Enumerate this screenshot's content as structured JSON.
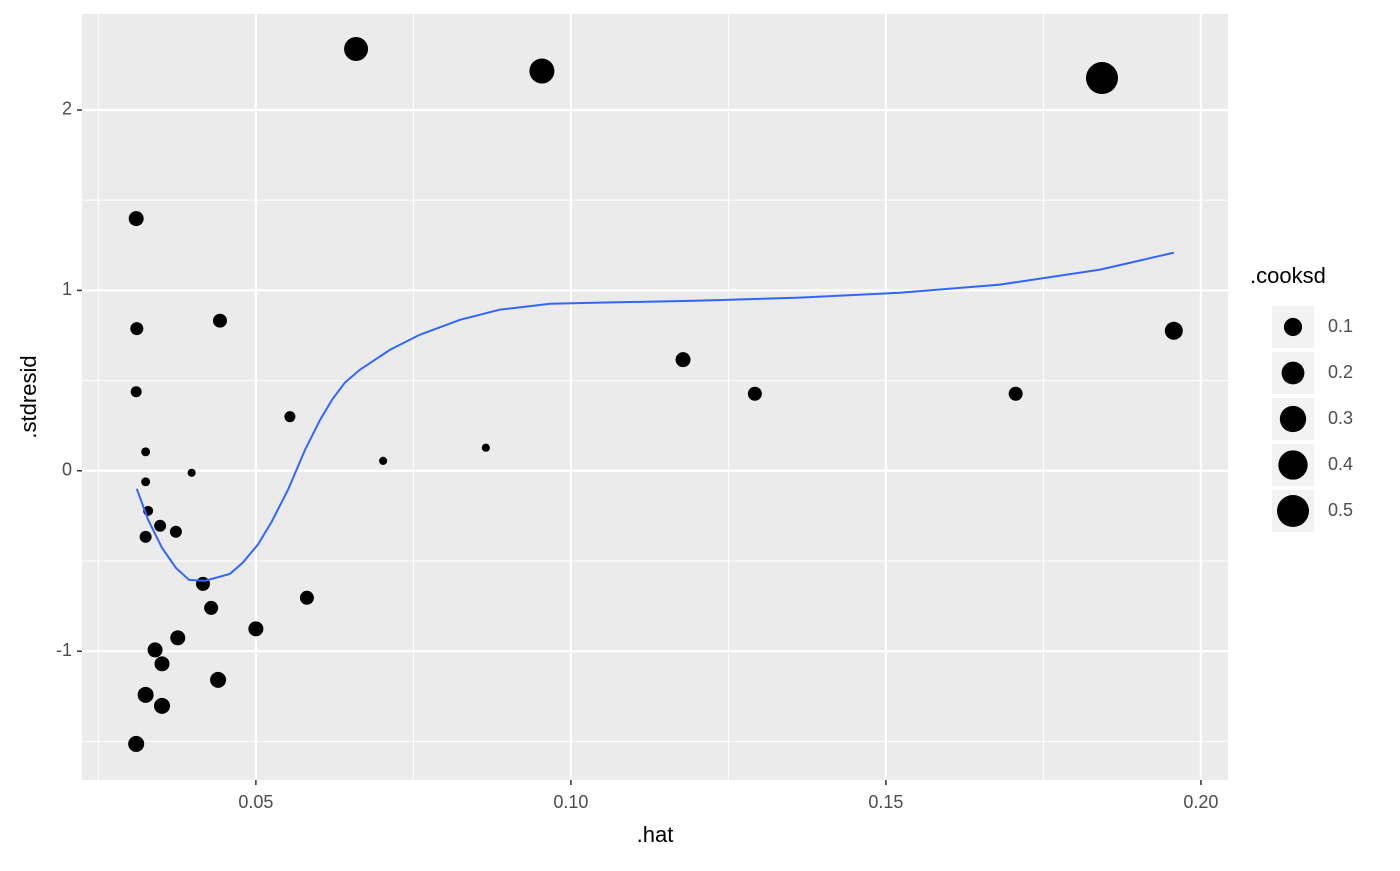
{
  "chart_data": {
    "type": "scatter",
    "x_label": ".hat",
    "y_label": ".stdresid",
    "xlim": [
      0.0224,
      0.2043
    ],
    "ylim": [
      -1.714,
      2.532
    ],
    "xticks": [
      0.05,
      {
        "value": 0.1,
        "label": "0.10"
      },
      0.15,
      {
        "value": 0.2,
        "label": "0.20"
      }
    ],
    "yticks": [
      -1,
      0,
      1,
      2
    ],
    "x_minor_ticks": [
      0.025,
      0.075,
      0.125,
      0.175
    ],
    "y_minor_ticks": [
      -1.5,
      -0.5,
      0.5,
      1.5
    ],
    "grid": true,
    "series": [
      {
        "type": "scatter",
        "color": "#000000",
        "x": [
          0.0659,
          0.0954,
          0.1843,
          0.031,
          0.0311,
          0.0443,
          0.031,
          0.0325,
          0.0325,
          0.0329,
          0.0325,
          0.0348,
          0.0373,
          0.0398,
          0.0554,
          0.0702,
          0.0865,
          0.1178,
          0.1292,
          0.1706,
          0.1957,
          0.0416,
          0.0429,
          0.0581,
          0.05,
          0.0376,
          0.034,
          0.0351,
          0.0325,
          0.044,
          0.0351,
          0.031
        ],
        "values": [
          2.338,
          2.216,
          2.177,
          1.398,
          0.788,
          0.832,
          0.438,
          0.105,
          -0.061,
          -0.222,
          -0.366,
          -0.305,
          -0.338,
          -0.011,
          0.3,
          0.055,
          0.128,
          0.616,
          0.427,
          0.427,
          0.776,
          -0.627,
          -0.76,
          -0.704,
          -0.876,
          -0.926,
          -0.993,
          -1.07,
          -1.242,
          -1.159,
          -1.303,
          -1.514
        ],
        "sizes": [
          0.23,
          0.26,
          0.5,
          0.051,
          0.029,
          0.039,
          0.013,
          0.003,
          0.003,
          0.007,
          0.02,
          0.02,
          0.02,
          0.001,
          0.013,
          0.001,
          0.001,
          0.051,
          0.039,
          0.039,
          0.097,
          0.039,
          0.039,
          0.039,
          0.051,
          0.051,
          0.051,
          0.051,
          0.065,
          0.065,
          0.065,
          0.065
        ]
      },
      {
        "type": "line",
        "color": "#3366FF",
        "x": [
          0.0311,
          0.0329,
          0.0351,
          0.0373,
          0.0394,
          0.0419,
          0.0459,
          0.0479,
          0.0503,
          0.0525,
          0.0551,
          0.0578,
          0.0602,
          0.0621,
          0.0641,
          0.0665,
          0.0713,
          0.076,
          0.0824,
          0.0887,
          0.0967,
          0.1046,
          0.1205,
          0.1363,
          0.1522,
          0.1681,
          0.184,
          0.1957
        ],
        "values": [
          -0.1,
          -0.272,
          -0.427,
          -0.538,
          -0.605,
          -0.61,
          -0.571,
          -0.51,
          -0.41,
          -0.283,
          -0.105,
          0.116,
          0.283,
          0.394,
          0.488,
          0.56,
          0.671,
          0.754,
          0.837,
          0.893,
          0.926,
          0.932,
          0.943,
          0.96,
          0.987,
          1.032,
          1.115,
          1.209
        ]
      }
    ],
    "size_legend": {
      "title": ".cooksd",
      "values": [
        0.1,
        0.2,
        0.3,
        0.4,
        0.5
      ]
    }
  }
}
